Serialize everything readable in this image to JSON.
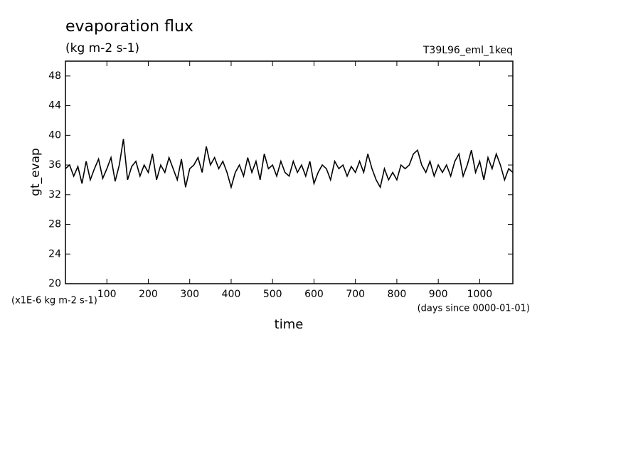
{
  "chart_data": {
    "type": "line",
    "title": "evaporation flux",
    "subtitle": "(kg m-2 s-1)",
    "run_label": "T39L96_eml_1keq",
    "y_label": "gt_evap",
    "x_label": "time",
    "y_unit_label": "(x1E-6 kg m-2 s-1)",
    "x_unit_label": "(days since 0000-01-01)",
    "xlim": [
      0,
      1080
    ],
    "ylim": [
      20,
      50
    ],
    "xticks": [
      100,
      200,
      300,
      400,
      500,
      600,
      700,
      800,
      900,
      1000
    ],
    "yticks": [
      20,
      24,
      28,
      32,
      36,
      40,
      44,
      48
    ],
    "x": [
      0,
      10,
      20,
      30,
      40,
      50,
      60,
      70,
      80,
      90,
      100,
      110,
      120,
      130,
      140,
      150,
      160,
      170,
      180,
      190,
      200,
      210,
      220,
      230,
      240,
      250,
      260,
      270,
      280,
      290,
      300,
      310,
      320,
      330,
      340,
      350,
      360,
      370,
      380,
      390,
      400,
      410,
      420,
      430,
      440,
      450,
      460,
      470,
      480,
      490,
      500,
      510,
      520,
      530,
      540,
      550,
      560,
      570,
      580,
      590,
      600,
      610,
      620,
      630,
      640,
      650,
      660,
      670,
      680,
      690,
      700,
      710,
      720,
      730,
      740,
      750,
      760,
      770,
      780,
      790,
      800,
      810,
      820,
      830,
      840,
      850,
      860,
      870,
      880,
      890,
      900,
      910,
      920,
      930,
      940,
      950,
      960,
      970,
      980,
      990,
      1000,
      1010,
      1020,
      1030,
      1040,
      1050,
      1060,
      1070,
      1080
    ],
    "series": [
      {
        "name": "gt_evap",
        "color": "#000000",
        "values": [
          35.5,
          36,
          34.5,
          35.8,
          33.5,
          36.5,
          34,
          35.5,
          36.8,
          34.2,
          35.5,
          37,
          33.8,
          36,
          39.5,
          34,
          35.8,
          36.5,
          34.5,
          36,
          35,
          37.5,
          34,
          36,
          35,
          37,
          35.5,
          34,
          36.8,
          33,
          35.5,
          36,
          37,
          35,
          38.5,
          36,
          37,
          35.5,
          36.5,
          35,
          33,
          35,
          36,
          34.5,
          37,
          35,
          36.5,
          34,
          37.5,
          35.5,
          36,
          34.5,
          36.5,
          35,
          34.5,
          36.5,
          35,
          36,
          34.5,
          36.5,
          33.5,
          35,
          36,
          35.5,
          34,
          36.5,
          35.5,
          36,
          34.5,
          35.8,
          35,
          36.5,
          35,
          37.5,
          35.5,
          34,
          33,
          35.5,
          34,
          35,
          34,
          36,
          35.5,
          36,
          37.5,
          38,
          36,
          35,
          36.5,
          34.5,
          36,
          35,
          36,
          34.5,
          36.5,
          37.5,
          34.5,
          36,
          38,
          35,
          36.5,
          34,
          37,
          35.5,
          37.5,
          36,
          34,
          35.5,
          35
        ]
      }
    ]
  }
}
